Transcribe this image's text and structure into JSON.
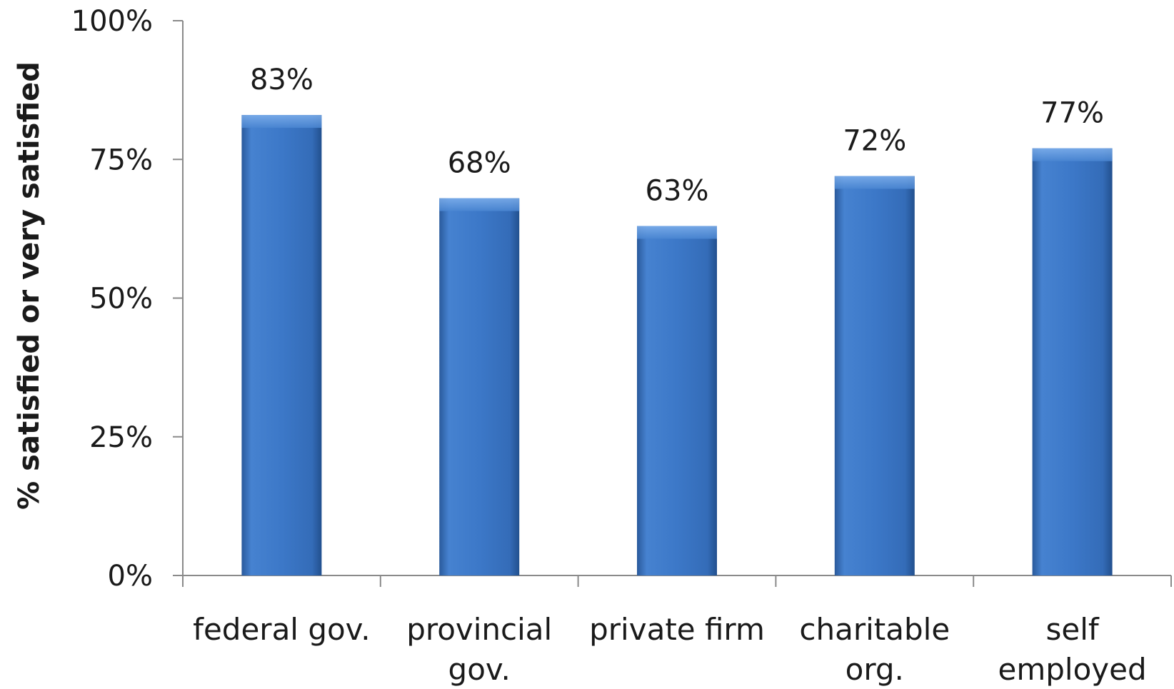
{
  "chart_data": {
    "type": "bar",
    "title": "",
    "xlabel": "",
    "ylabel": "% satisfied or very satisfied",
    "categories": [
      [
        "federal gov."
      ],
      [
        "provincial",
        "gov."
      ],
      [
        "private firm"
      ],
      [
        "charitable",
        "org."
      ],
      [
        "self",
        "employed"
      ]
    ],
    "values": [
      83,
      68,
      63,
      72,
      77
    ],
    "data_labels": [
      "83%",
      "68%",
      "63%",
      "72%",
      "77%"
    ],
    "ylim": [
      0,
      100
    ],
    "yticks": [
      0,
      25,
      50,
      75,
      100
    ],
    "ytick_labels": [
      "0%",
      "25%",
      "50%",
      "75%",
      "100%"
    ],
    "grid": false,
    "colors": {
      "bar": "#3c78c8",
      "bar_light": "#5a94dc",
      "bar_dark": "#2a5a9c"
    }
  }
}
